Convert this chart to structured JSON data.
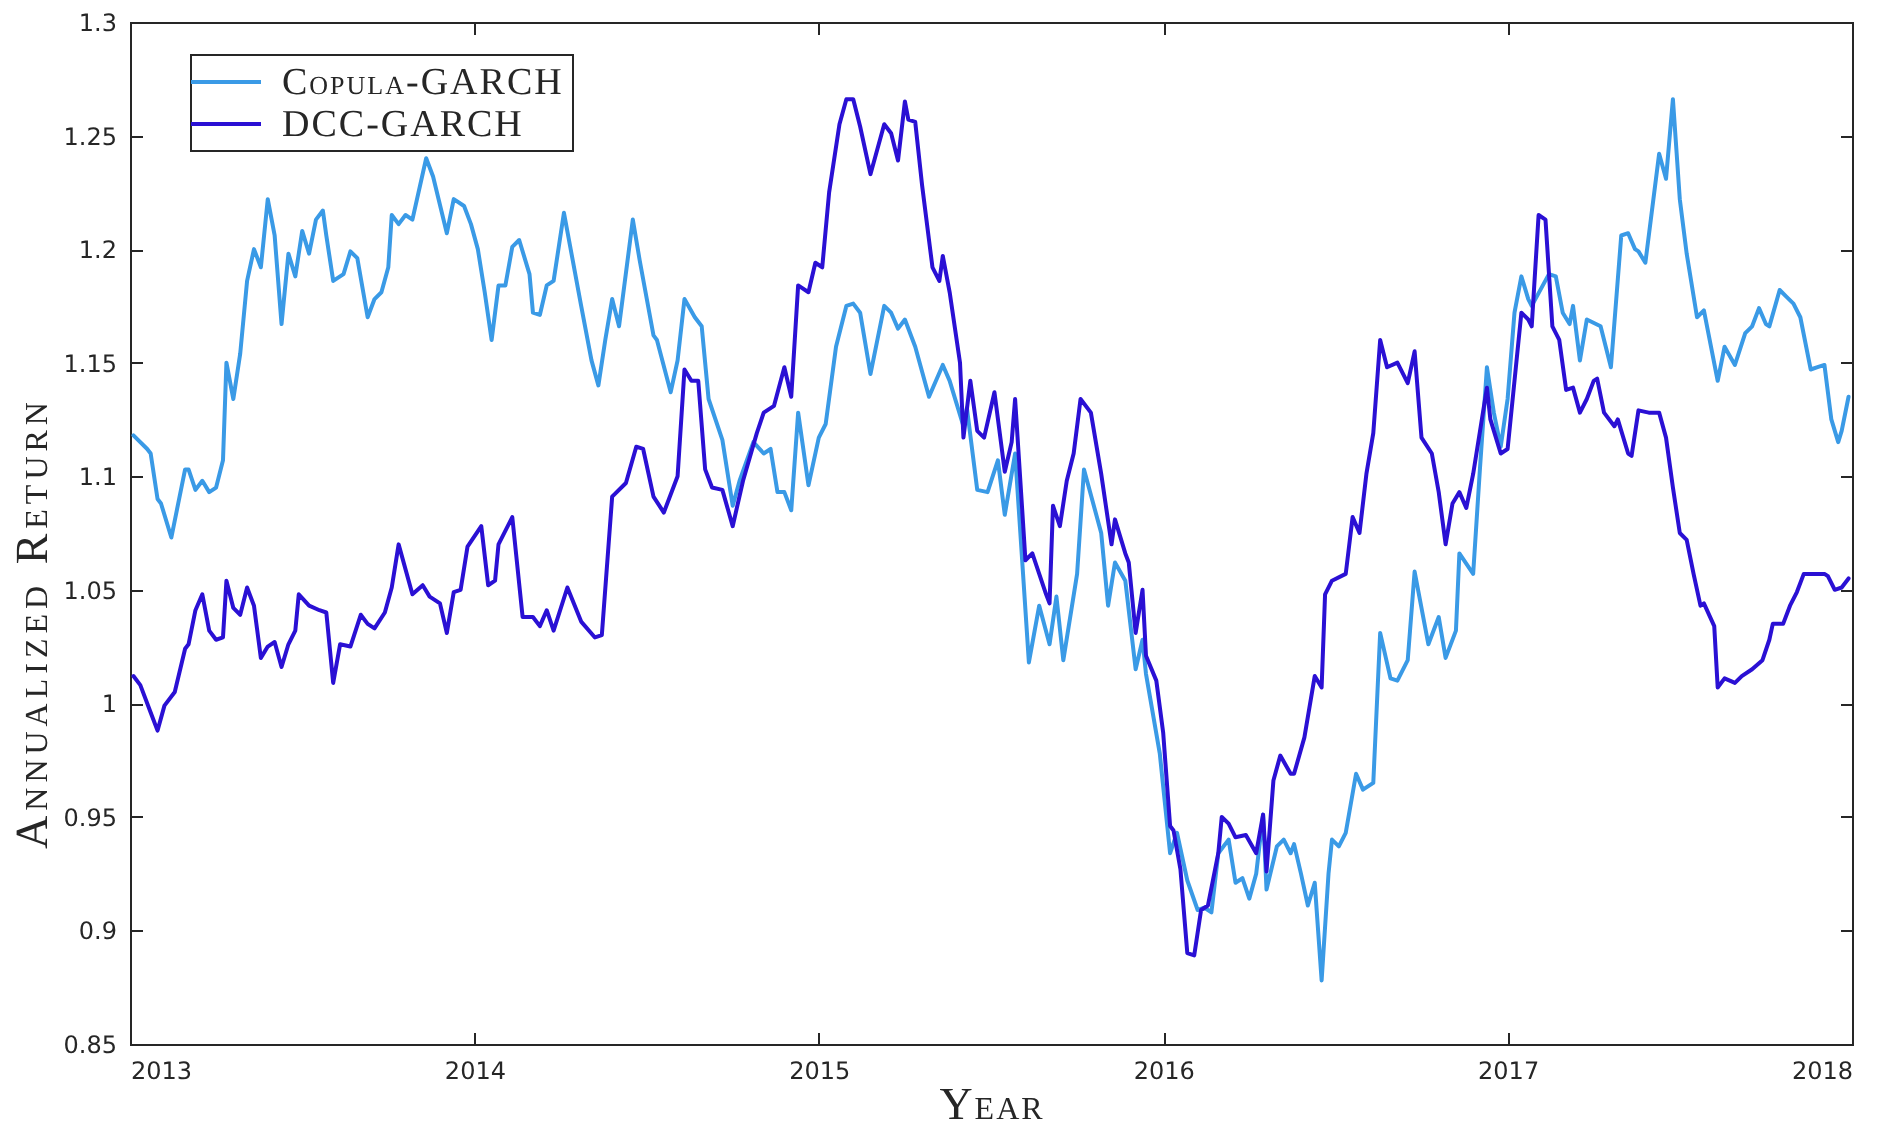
{
  "chart_data": {
    "type": "line",
    "xlabel": "Year",
    "ylabel": "Annualized Return",
    "xlim": [
      2013,
      2018
    ],
    "xticks": [
      2013,
      2014,
      2015,
      2016,
      2017,
      2018
    ],
    "ylim": [
      0.85,
      1.3
    ],
    "yticks": [
      0.85,
      0.9,
      0.95,
      1,
      1.05,
      1.1,
      1.15,
      1.2,
      1.25,
      1.3
    ],
    "legend": "top left",
    "series": [
      {
        "name": "Copula-GARCH",
        "color": "#3a9ae6",
        "x": [
          2013.01,
          2013.05,
          2013.06,
          2013.08,
          2013.09,
          2013.12,
          2013.16,
          2013.17,
          2013.19,
          2013.21,
          2013.23,
          2013.25,
          2013.27,
          2013.28,
          2013.3,
          2013.32,
          2013.34,
          2013.36,
          2013.38,
          2013.4,
          2013.42,
          2013.44,
          2013.46,
          2013.48,
          2013.5,
          2013.52,
          2013.54,
          2013.56,
          2013.57,
          2013.59,
          2013.62,
          2013.64,
          2013.66,
          2013.69,
          2013.71,
          2013.73,
          2013.75,
          2013.76,
          2013.78,
          2013.8,
          2013.82,
          2013.86,
          2013.88,
          2013.92,
          2013.94,
          2013.97,
          2013.99,
          2014.01,
          2014.03,
          2014.05,
          2014.07,
          2014.09,
          2014.11,
          2014.13,
          2014.16,
          2014.17,
          2014.19,
          2014.21,
          2014.23,
          2014.26,
          2014.31,
          2014.34,
          2014.36,
          2014.38,
          2014.4,
          2014.42,
          2014.46,
          2014.48,
          2014.52,
          2014.53,
          2014.57,
          2014.59,
          2014.61,
          2014.64,
          2014.66,
          2014.68,
          2014.72,
          2014.75,
          2014.77,
          2014.81,
          2014.84,
          2014.86,
          2014.88,
          2014.9,
          2014.92,
          2014.94,
          2014.97,
          2015.0,
          2015.02,
          2015.05,
          2015.08,
          2015.1,
          2015.12,
          2015.15,
          2015.19,
          2015.21,
          2015.23,
          2015.25,
          2015.28,
          2015.32,
          2015.36,
          2015.38,
          2015.42,
          2015.43,
          2015.46,
          2015.49,
          2015.52,
          2015.54,
          2015.57,
          2015.61,
          2015.64,
          2015.67,
          2015.69,
          2015.71,
          2015.75,
          2015.77,
          2015.82,
          2015.84,
          2015.86,
          2015.89,
          2015.92,
          2015.94,
          2015.95,
          2015.99,
          2016.02,
          2016.04,
          2016.07,
          2016.1,
          2016.12,
          2016.14,
          2016.16,
          2016.19,
          2016.21,
          2016.23,
          2016.25,
          2016.27,
          2016.29,
          2016.3,
          2016.33,
          2016.35,
          2016.37,
          2016.38,
          2016.4,
          2016.42,
          2016.44,
          2016.46,
          2016.48,
          2016.49,
          2016.51,
          2016.53,
          2016.56,
          2016.58,
          2016.61,
          2016.63,
          2016.66,
          2016.68,
          2016.71,
          2016.73,
          2016.77,
          2016.8,
          2016.82,
          2016.85,
          2016.86,
          2016.9,
          2016.92,
          2016.94,
          2016.96,
          2016.98,
          2017.0,
          2017.02,
          2017.04,
          2017.06,
          2017.07,
          2017.12,
          2017.14,
          2017.16,
          2017.18,
          2017.19,
          2017.21,
          2017.23,
          2017.27,
          2017.3,
          2017.33,
          2017.35,
          2017.37,
          2017.38,
          2017.4,
          2017.44,
          2017.46,
          2017.48,
          2017.5,
          2017.52,
          2017.55,
          2017.57,
          2017.61,
          2017.63,
          2017.66,
          2017.69,
          2017.71,
          2017.73,
          2017.75,
          2017.76,
          2017.79,
          2017.81,
          2017.83,
          2017.85,
          2017.88,
          2017.9,
          2017.92,
          2017.94,
          2017.96,
          2017.97,
          2017.99
        ],
        "values": [
          1.118,
          1.112,
          1.11,
          1.09,
          1.088,
          1.073,
          1.103,
          1.103,
          1.094,
          1.098,
          1.093,
          1.095,
          1.107,
          1.15,
          1.134,
          1.154,
          1.186,
          1.2,
          1.192,
          1.222,
          1.206,
          1.167,
          1.198,
          1.188,
          1.208,
          1.198,
          1.213,
          1.217,
          1.206,
          1.186,
          1.189,
          1.199,
          1.196,
          1.17,
          1.178,
          1.181,
          1.192,
          1.215,
          1.211,
          1.215,
          1.213,
          1.24,
          1.232,
          1.207,
          1.222,
          1.219,
          1.211,
          1.2,
          1.181,
          1.16,
          1.184,
          1.184,
          1.201,
          1.204,
          1.189,
          1.172,
          1.171,
          1.184,
          1.186,
          1.216,
          1.175,
          1.151,
          1.14,
          1.16,
          1.178,
          1.166,
          1.213,
          1.195,
          1.162,
          1.16,
          1.137,
          1.151,
          1.178,
          1.17,
          1.166,
          1.134,
          1.116,
          1.087,
          1.098,
          1.115,
          1.11,
          1.112,
          1.093,
          1.093,
          1.085,
          1.128,
          1.096,
          1.117,
          1.123,
          1.157,
          1.175,
          1.176,
          1.172,
          1.145,
          1.175,
          1.172,
          1.165,
          1.169,
          1.157,
          1.135,
          1.149,
          1.142,
          1.122,
          1.13,
          1.094,
          1.093,
          1.107,
          1.083,
          1.11,
          1.018,
          1.043,
          1.026,
          1.047,
          1.019,
          1.057,
          1.103,
          1.075,
          1.043,
          1.062,
          1.054,
          1.015,
          1.028,
          1.013,
          0.978,
          0.934,
          0.943,
          0.922,
          0.909,
          0.91,
          0.908,
          0.934,
          0.94,
          0.921,
          0.923,
          0.914,
          0.925,
          0.951,
          0.918,
          0.937,
          0.94,
          0.934,
          0.938,
          0.925,
          0.911,
          0.921,
          0.878,
          0.925,
          0.94,
          0.937,
          0.943,
          0.969,
          0.962,
          0.965,
          1.031,
          1.011,
          1.01,
          1.019,
          1.058,
          1.026,
          1.038,
          1.02,
          1.032,
          1.066,
          1.057,
          1.104,
          1.148,
          1.128,
          1.113,
          1.134,
          1.172,
          1.188,
          1.178,
          1.175,
          1.189,
          1.188,
          1.172,
          1.167,
          1.175,
          1.151,
          1.169,
          1.166,
          1.148,
          1.206,
          1.207,
          1.2,
          1.199,
          1.194,
          1.242,
          1.231,
          1.266,
          1.222,
          1.198,
          1.17,
          1.173,
          1.142,
          1.157,
          1.149,
          1.163,
          1.166,
          1.174,
          1.167,
          1.166,
          1.182,
          1.179,
          1.176,
          1.17,
          1.147,
          1.148,
          1.149,
          1.125,
          1.115,
          1.12,
          1.135
        ]
      },
      {
        "name": "DCC-GARCH",
        "color": "#2a10d4",
        "x": [
          2013.01,
          2013.03,
          2013.06,
          2013.08,
          2013.1,
          2013.13,
          2013.16,
          2013.17,
          2013.19,
          2013.21,
          2013.23,
          2013.25,
          2013.27,
          2013.28,
          2013.3,
          2013.32,
          2013.34,
          2013.36,
          2013.38,
          2013.4,
          2013.42,
          2013.44,
          2013.46,
          2013.48,
          2013.49,
          2013.52,
          2013.55,
          2013.57,
          2013.59,
          2013.61,
          2013.64,
          2013.67,
          2013.69,
          2013.71,
          2013.74,
          2013.76,
          2013.78,
          2013.82,
          2013.85,
          2013.87,
          2013.9,
          2013.92,
          2013.94,
          2013.96,
          2013.98,
          2014.02,
          2014.04,
          2014.06,
          2014.07,
          2014.11,
          2014.14,
          2014.17,
          2014.19,
          2014.21,
          2014.23,
          2014.27,
          2014.31,
          2014.35,
          2014.37,
          2014.4,
          2014.44,
          2014.47,
          2014.49,
          2014.52,
          2014.55,
          2014.59,
          2014.61,
          2014.63,
          2014.65,
          2014.67,
          2014.69,
          2014.72,
          2014.75,
          2014.78,
          2014.82,
          2014.84,
          2014.87,
          2014.9,
          2014.92,
          2014.94,
          2014.97,
          2014.99,
          2015.01,
          2015.03,
          2015.06,
          2015.08,
          2015.1,
          2015.12,
          2015.15,
          2015.19,
          2015.21,
          2015.23,
          2015.25,
          2015.26,
          2015.28,
          2015.3,
          2015.33,
          2015.35,
          2015.36,
          2015.38,
          2015.41,
          2015.42,
          2015.44,
          2015.46,
          2015.48,
          2015.51,
          2015.54,
          2015.56,
          2015.57,
          2015.6,
          2015.62,
          2015.64,
          2015.66,
          2015.67,
          2015.68,
          2015.7,
          2015.72,
          2015.74,
          2015.76,
          2015.79,
          2015.82,
          2015.85,
          2015.86,
          2015.89,
          2015.9,
          2015.92,
          2015.94,
          2015.95,
          2015.98,
          2016.0,
          2016.02,
          2016.03,
          2016.05,
          2016.07,
          2016.09,
          2016.11,
          2016.13,
          2016.16,
          2016.17,
          2016.19,
          2016.21,
          2016.24,
          2016.27,
          2016.29,
          2016.3,
          2016.32,
          2016.34,
          2016.37,
          2016.38,
          2016.41,
          2016.44,
          2016.46,
          2016.47,
          2016.49,
          2016.53,
          2016.55,
          2016.57,
          2016.59,
          2016.61,
          2016.63,
          2016.65,
          2016.68,
          2016.71,
          2016.73,
          2016.75,
          2016.78,
          2016.8,
          2016.82,
          2016.84,
          2016.86,
          2016.88,
          2016.9,
          2016.94,
          2016.95,
          2016.98,
          2017.0,
          2017.02,
          2017.04,
          2017.06,
          2017.07,
          2017.09,
          2017.11,
          2017.13,
          2017.15,
          2017.17,
          2017.19,
          2017.21,
          2017.23,
          2017.25,
          2017.26,
          2017.28,
          2017.31,
          2017.32,
          2017.35,
          2017.36,
          2017.38,
          2017.41,
          2017.44,
          2017.46,
          2017.48,
          2017.5,
          2017.52,
          2017.54,
          2017.56,
          2017.57,
          2017.6,
          2017.61,
          2017.63,
          2017.66,
          2017.68,
          2017.71,
          2017.74,
          2017.76,
          2017.77,
          2017.8,
          2017.82,
          2017.84,
          2017.86,
          2017.89,
          2017.92,
          2017.93,
          2017.95,
          2017.97,
          2017.99
        ],
        "values": [
          1.012,
          1.008,
          0.996,
          0.988,
          0.999,
          1.005,
          1.024,
          1.026,
          1.041,
          1.048,
          1.032,
          1.028,
          1.029,
          1.054,
          1.042,
          1.039,
          1.051,
          1.043,
          1.02,
          1.025,
          1.027,
          1.016,
          1.026,
          1.032,
          1.048,
          1.043,
          1.041,
          1.04,
          1.009,
          1.026,
          1.025,
          1.039,
          1.035,
          1.033,
          1.04,
          1.051,
          1.07,
          1.048,
          1.052,
          1.047,
          1.044,
          1.031,
          1.049,
          1.05,
          1.069,
          1.078,
          1.052,
          1.054,
          1.07,
          1.082,
          1.038,
          1.038,
          1.034,
          1.041,
          1.032,
          1.051,
          1.036,
          1.029,
          1.03,
          1.091,
          1.097,
          1.113,
          1.112,
          1.091,
          1.084,
          1.1,
          1.147,
          1.142,
          1.142,
          1.103,
          1.095,
          1.094,
          1.078,
          1.098,
          1.119,
          1.128,
          1.131,
          1.148,
          1.135,
          1.184,
          1.181,
          1.194,
          1.192,
          1.225,
          1.255,
          1.266,
          1.266,
          1.254,
          1.233,
          1.255,
          1.251,
          1.239,
          1.265,
          1.257,
          1.256,
          1.228,
          1.192,
          1.186,
          1.197,
          1.181,
          1.15,
          1.117,
          1.142,
          1.12,
          1.117,
          1.137,
          1.102,
          1.115,
          1.134,
          1.063,
          1.066,
          1.057,
          1.048,
          1.044,
          1.087,
          1.078,
          1.098,
          1.11,
          1.134,
          1.128,
          1.101,
          1.07,
          1.081,
          1.066,
          1.062,
          1.031,
          1.05,
          1.021,
          1.01,
          0.987,
          0.946,
          0.944,
          0.927,
          0.89,
          0.889,
          0.909,
          0.911,
          0.934,
          0.95,
          0.947,
          0.941,
          0.942,
          0.934,
          0.951,
          0.926,
          0.966,
          0.977,
          0.969,
          0.969,
          0.985,
          1.012,
          1.007,
          1.048,
          1.054,
          1.057,
          1.082,
          1.075,
          1.101,
          1.119,
          1.16,
          1.148,
          1.15,
          1.141,
          1.155,
          1.117,
          1.11,
          1.093,
          1.07,
          1.088,
          1.093,
          1.086,
          1.101,
          1.139,
          1.125,
          1.11,
          1.112,
          1.142,
          1.172,
          1.169,
          1.166,
          1.215,
          1.213,
          1.166,
          1.16,
          1.138,
          1.139,
          1.128,
          1.134,
          1.142,
          1.143,
          1.128,
          1.122,
          1.125,
          1.11,
          1.109,
          1.129,
          1.128,
          1.128,
          1.117,
          1.095,
          1.075,
          1.072,
          1.057,
          1.043,
          1.044,
          1.034,
          1.007,
          1.011,
          1.009,
          1.012,
          1.015,
          1.019,
          1.028,
          1.035,
          1.035,
          1.043,
          1.049,
          1.057,
          1.057,
          1.057,
          1.056,
          1.05,
          1.051,
          1.055
        ]
      }
    ]
  }
}
